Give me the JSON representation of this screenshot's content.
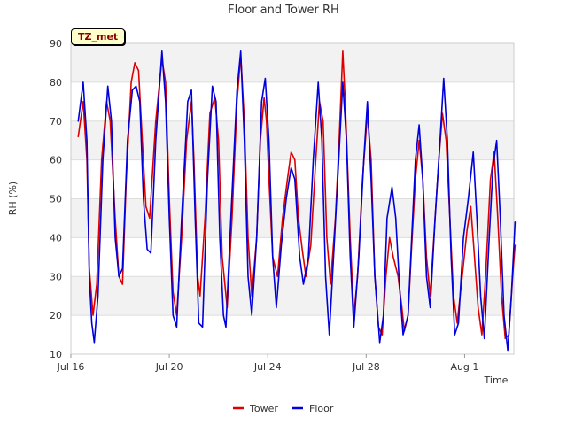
{
  "chart_data": {
    "type": "line",
    "title": "Floor and Tower RH",
    "xlabel": "Time",
    "ylabel": "RH (%)",
    "badge": "TZ_met",
    "ylim": [
      10,
      90
    ],
    "yticks": [
      10,
      20,
      30,
      40,
      50,
      60,
      70,
      80,
      90
    ],
    "xlim": [
      0,
      18
    ],
    "xticks": [
      {
        "day": 0,
        "label": "Jul 16"
      },
      {
        "day": 4,
        "label": "Jul 20"
      },
      {
        "day": 8,
        "label": "Jul 24"
      },
      {
        "day": 12,
        "label": "Jul 28"
      },
      {
        "day": 16,
        "label": "Aug 1"
      }
    ],
    "legend_position": "bottom-center",
    "series": [
      {
        "name": "Tower",
        "color": "#dd0000",
        "points": [
          [
            0.3,
            66
          ],
          [
            0.5,
            75
          ],
          [
            0.65,
            60
          ],
          [
            0.75,
            32
          ],
          [
            0.9,
            20
          ],
          [
            1.05,
            28
          ],
          [
            1.25,
            60
          ],
          [
            1.45,
            75
          ],
          [
            1.6,
            70
          ],
          [
            1.8,
            45
          ],
          [
            1.95,
            30
          ],
          [
            2.1,
            28
          ],
          [
            2.25,
            55
          ],
          [
            2.45,
            80
          ],
          [
            2.6,
            85
          ],
          [
            2.75,
            83
          ],
          [
            2.9,
            65
          ],
          [
            3.05,
            48
          ],
          [
            3.2,
            45
          ],
          [
            3.45,
            70
          ],
          [
            3.7,
            86
          ],
          [
            3.85,
            80
          ],
          [
            4.0,
            50
          ],
          [
            4.15,
            26
          ],
          [
            4.3,
            20
          ],
          [
            4.5,
            40
          ],
          [
            4.7,
            65
          ],
          [
            4.9,
            75
          ],
          [
            5.0,
            60
          ],
          [
            5.15,
            30
          ],
          [
            5.25,
            25
          ],
          [
            5.45,
            45
          ],
          [
            5.65,
            72
          ],
          [
            5.85,
            76
          ],
          [
            6.0,
            65
          ],
          [
            6.15,
            35
          ],
          [
            6.35,
            22
          ],
          [
            6.55,
            45
          ],
          [
            6.75,
            75
          ],
          [
            6.9,
            87
          ],
          [
            7.05,
            70
          ],
          [
            7.2,
            40
          ],
          [
            7.35,
            25
          ],
          [
            7.55,
            40
          ],
          [
            7.7,
            65
          ],
          [
            7.85,
            76
          ],
          [
            7.95,
            70
          ],
          [
            8.05,
            55
          ],
          [
            8.2,
            35
          ],
          [
            8.4,
            30
          ],
          [
            8.6,
            45
          ],
          [
            8.8,
            55
          ],
          [
            8.95,
            62
          ],
          [
            9.1,
            60
          ],
          [
            9.25,
            45
          ],
          [
            9.4,
            37
          ],
          [
            9.55,
            30
          ],
          [
            9.75,
            38
          ],
          [
            9.95,
            60
          ],
          [
            10.1,
            75
          ],
          [
            10.25,
            70
          ],
          [
            10.4,
            40
          ],
          [
            10.55,
            28
          ],
          [
            10.75,
            45
          ],
          [
            10.9,
            65
          ],
          [
            11.05,
            88
          ],
          [
            11.15,
            75
          ],
          [
            11.35,
            40
          ],
          [
            11.5,
            20
          ],
          [
            11.65,
            30
          ],
          [
            11.85,
            55
          ],
          [
            12.05,
            72
          ],
          [
            12.2,
            60
          ],
          [
            12.35,
            30
          ],
          [
            12.5,
            17
          ],
          [
            12.65,
            15
          ],
          [
            12.8,
            30
          ],
          [
            12.95,
            40
          ],
          [
            13.1,
            35
          ],
          [
            13.3,
            30
          ],
          [
            13.45,
            22
          ],
          [
            13.55,
            16
          ],
          [
            13.7,
            20
          ],
          [
            13.85,
            38
          ],
          [
            14.0,
            55
          ],
          [
            14.15,
            65
          ],
          [
            14.3,
            55
          ],
          [
            14.45,
            35
          ],
          [
            14.6,
            25
          ],
          [
            14.75,
            40
          ],
          [
            14.95,
            60
          ],
          [
            15.1,
            72
          ],
          [
            15.25,
            65
          ],
          [
            15.4,
            45
          ],
          [
            15.55,
            25
          ],
          [
            15.7,
            18
          ],
          [
            15.9,
            30
          ],
          [
            16.1,
            42
          ],
          [
            16.25,
            48
          ],
          [
            16.4,
            35
          ],
          [
            16.55,
            22
          ],
          [
            16.7,
            15
          ],
          [
            16.85,
            30
          ],
          [
            17.05,
            55
          ],
          [
            17.2,
            62
          ],
          [
            17.35,
            45
          ],
          [
            17.5,
            25
          ],
          [
            17.65,
            14
          ],
          [
            17.8,
            15
          ],
          [
            17.95,
            30
          ],
          [
            18.05,
            38
          ]
        ]
      },
      {
        "name": "Floor",
        "color": "#0000dd",
        "points": [
          [
            0.3,
            70
          ],
          [
            0.5,
            80
          ],
          [
            0.65,
            65
          ],
          [
            0.75,
            30
          ],
          [
            0.85,
            18
          ],
          [
            0.95,
            13
          ],
          [
            1.1,
            25
          ],
          [
            1.3,
            60
          ],
          [
            1.5,
            79
          ],
          [
            1.65,
            70
          ],
          [
            1.8,
            40
          ],
          [
            1.95,
            30
          ],
          [
            2.1,
            32
          ],
          [
            2.3,
            65
          ],
          [
            2.5,
            78
          ],
          [
            2.65,
            79
          ],
          [
            2.8,
            75
          ],
          [
            2.95,
            50
          ],
          [
            3.1,
            37
          ],
          [
            3.25,
            36
          ],
          [
            3.45,
            65
          ],
          [
            3.7,
            88
          ],
          [
            3.85,
            75
          ],
          [
            4.0,
            45
          ],
          [
            4.15,
            20
          ],
          [
            4.3,
            17
          ],
          [
            4.5,
            45
          ],
          [
            4.75,
            75
          ],
          [
            4.9,
            78
          ],
          [
            5.05,
            45
          ],
          [
            5.2,
            18
          ],
          [
            5.35,
            17
          ],
          [
            5.55,
            55
          ],
          [
            5.75,
            79
          ],
          [
            5.9,
            75
          ],
          [
            6.05,
            40
          ],
          [
            6.2,
            20
          ],
          [
            6.3,
            17
          ],
          [
            6.5,
            45
          ],
          [
            6.75,
            78
          ],
          [
            6.9,
            88
          ],
          [
            7.05,
            65
          ],
          [
            7.2,
            30
          ],
          [
            7.35,
            20
          ],
          [
            7.55,
            40
          ],
          [
            7.75,
            75
          ],
          [
            7.9,
            81
          ],
          [
            8.05,
            65
          ],
          [
            8.2,
            35
          ],
          [
            8.35,
            22
          ],
          [
            8.55,
            38
          ],
          [
            8.75,
            50
          ],
          [
            8.95,
            58
          ],
          [
            9.1,
            55
          ],
          [
            9.3,
            35
          ],
          [
            9.45,
            28
          ],
          [
            9.65,
            35
          ],
          [
            9.85,
            60
          ],
          [
            10.05,
            80
          ],
          [
            10.2,
            65
          ],
          [
            10.35,
            30
          ],
          [
            10.5,
            15
          ],
          [
            10.7,
            38
          ],
          [
            10.9,
            62
          ],
          [
            11.05,
            80
          ],
          [
            11.2,
            65
          ],
          [
            11.35,
            35
          ],
          [
            11.5,
            17
          ],
          [
            11.7,
            35
          ],
          [
            11.9,
            60
          ],
          [
            12.05,
            75
          ],
          [
            12.2,
            55
          ],
          [
            12.35,
            30
          ],
          [
            12.55,
            13
          ],
          [
            12.7,
            20
          ],
          [
            12.85,
            45
          ],
          [
            13.05,
            53
          ],
          [
            13.2,
            45
          ],
          [
            13.35,
            28
          ],
          [
            13.5,
            15
          ],
          [
            13.7,
            20
          ],
          [
            13.85,
            40
          ],
          [
            14.0,
            60
          ],
          [
            14.15,
            69
          ],
          [
            14.3,
            55
          ],
          [
            14.45,
            30
          ],
          [
            14.6,
            22
          ],
          [
            14.8,
            45
          ],
          [
            15.0,
            65
          ],
          [
            15.15,
            81
          ],
          [
            15.3,
            65
          ],
          [
            15.45,
            35
          ],
          [
            15.6,
            15
          ],
          [
            15.75,
            18
          ],
          [
            15.95,
            40
          ],
          [
            16.15,
            50
          ],
          [
            16.35,
            62
          ],
          [
            16.5,
            45
          ],
          [
            16.65,
            25
          ],
          [
            16.8,
            14
          ],
          [
            17.0,
            40
          ],
          [
            17.15,
            58
          ],
          [
            17.3,
            65
          ],
          [
            17.45,
            45
          ],
          [
            17.6,
            20
          ],
          [
            17.75,
            11
          ],
          [
            17.9,
            25
          ],
          [
            18.05,
            44
          ]
        ]
      }
    ]
  }
}
